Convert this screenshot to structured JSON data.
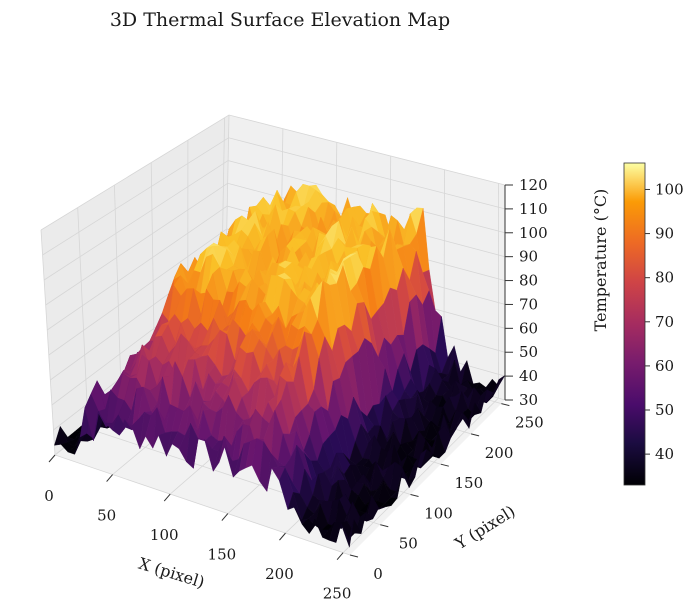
{
  "chart_data": {
    "type": "surface3d",
    "title": "3D Thermal Surface Elevation Map",
    "xlabel": "X (pixel)",
    "ylabel": "Y (pixel)",
    "zlabel": "",
    "xlim": [
      0,
      256
    ],
    "ylim": [
      0,
      256
    ],
    "zlim": [
      30,
      120
    ],
    "x_ticks": [
      "0",
      "50",
      "100",
      "150",
      "200",
      "250"
    ],
    "y_ticks": [
      "0",
      "50",
      "100",
      "150",
      "200",
      "250"
    ],
    "z_ticks": [
      "30",
      "40",
      "50",
      "60",
      "70",
      "80",
      "90",
      "100",
      "110",
      "120"
    ],
    "colorbar": {
      "label": "Temperature (°C)",
      "range": [
        33,
        106
      ],
      "ticks": [
        "40",
        "50",
        "60",
        "70",
        "80",
        "90",
        "100"
      ],
      "colormap": "inferno"
    },
    "grid": true,
    "approx_surface_profile": {
      "description_values_by_x": [
        {
          "x": 0,
          "z": 34
        },
        {
          "x": 20,
          "z": 35
        },
        {
          "x": 40,
          "z": 75
        },
        {
          "x": 60,
          "z": 95
        },
        {
          "x": 80,
          "z": 95
        },
        {
          "x": 100,
          "z": 90
        },
        {
          "x": 120,
          "z": 92
        },
        {
          "x": 140,
          "z": 97
        },
        {
          "x": 160,
          "z": 90
        },
        {
          "x": 180,
          "z": 98
        },
        {
          "x": 200,
          "z": 45
        },
        {
          "x": 220,
          "z": 36
        },
        {
          "x": 240,
          "z": 35
        },
        {
          "x": 256,
          "z": 35
        }
      ],
      "far_edge_z_by_y": [
        {
          "y": 0,
          "z": 90
        },
        {
          "y": 100,
          "z": 85
        },
        {
          "y": 200,
          "z": 80
        },
        {
          "y": 256,
          "z": 70
        }
      ]
    }
  }
}
